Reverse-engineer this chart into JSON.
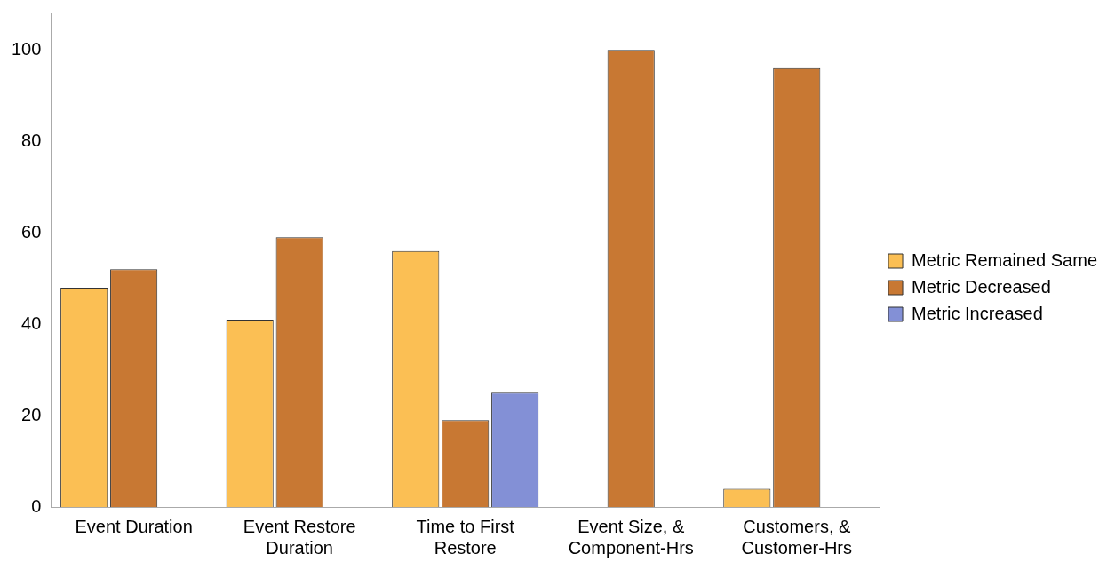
{
  "chart_data": {
    "type": "bar",
    "categories": [
      "Event Duration",
      "Event Restore Duration",
      "Time to First Restore",
      "Event Size, & Component-Hrs",
      "Customers, & Customer-Hrs"
    ],
    "series": [
      {
        "name": "Metric Remained Same",
        "color": "#fbbf54",
        "values": [
          48,
          41,
          56,
          0,
          4
        ]
      },
      {
        "name": "Metric Decreased",
        "color": "#c87833",
        "values": [
          52,
          59,
          19,
          100,
          96
        ]
      },
      {
        "name": "Metric Increased",
        "color": "#8390d6",
        "values": [
          0,
          0,
          25,
          0,
          0
        ]
      }
    ],
    "ylim": [
      0,
      108
    ],
    "yticks": [
      0,
      20,
      40,
      60,
      80,
      100
    ],
    "grid": false,
    "legend": "right"
  }
}
